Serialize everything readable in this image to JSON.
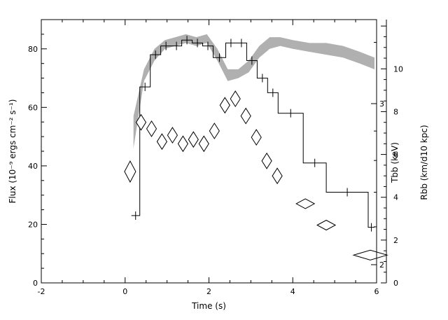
{
  "chart_data": {
    "type": "line",
    "xlabel": "Time (s)",
    "xlim": [
      -2,
      6
    ],
    "xticks": [
      -2,
      0,
      2,
      4,
      6
    ],
    "ylabel_left": "Flux (10⁻⁹ ergs cm⁻² s⁻¹)",
    "ylim_left": [
      0,
      90
    ],
    "yticks_left": [
      0,
      20,
      40,
      60,
      80
    ],
    "ylabel_right_T": "Tbb (keV)",
    "yticks_right_T": [
      2,
      3
    ],
    "ylabel_right_R": "Rbb (km/d10 kpc)",
    "ylim_right_R": [
      0,
      12.3
    ],
    "yticks_right_R": [
      0,
      2,
      4,
      6,
      8,
      10
    ],
    "series": [
      {
        "kind": "step",
        "color": "#000000",
        "points": [
          {
            "x": 0.15,
            "y": 23
          },
          {
            "x": 0.35,
            "y": 67
          },
          {
            "x": 0.6,
            "y": 78
          },
          {
            "x": 0.85,
            "y": 81
          },
          {
            "x": 1.1,
            "y": 81
          },
          {
            "x": 1.35,
            "y": 83
          },
          {
            "x": 1.6,
            "y": 82
          },
          {
            "x": 1.85,
            "y": 81
          },
          {
            "x": 2.1,
            "y": 77
          },
          {
            "x": 2.4,
            "y": 82
          },
          {
            "x": 2.65,
            "y": 82
          },
          {
            "x": 2.9,
            "y": 76
          },
          {
            "x": 3.15,
            "y": 70
          },
          {
            "x": 3.4,
            "y": 65
          },
          {
            "x": 3.65,
            "y": 58
          },
          {
            "x": 4.25,
            "y": 41
          },
          {
            "x": 4.8,
            "y": 31
          },
          {
            "x": 5.8,
            "y": 19
          }
        ],
        "last_edge": 5.95
      },
      {
        "kind": "diamonds",
        "color": "#000000",
        "axis": "R",
        "points": [
          {
            "x": 0.12,
            "y": 5.2
          },
          {
            "x": 0.38,
            "y": 7.5
          },
          {
            "x": 0.63,
            "y": 7.2
          },
          {
            "x": 0.88,
            "y": 6.6
          },
          {
            "x": 1.13,
            "y": 6.9
          },
          {
            "x": 1.38,
            "y": 6.5
          },
          {
            "x": 1.63,
            "y": 6.7
          },
          {
            "x": 1.88,
            "y": 6.5
          },
          {
            "x": 2.13,
            "y": 7.1
          },
          {
            "x": 2.38,
            "y": 8.3
          },
          {
            "x": 2.63,
            "y": 8.6
          },
          {
            "x": 2.88,
            "y": 7.8
          },
          {
            "x": 3.13,
            "y": 6.8
          },
          {
            "x": 3.38,
            "y": 5.7
          },
          {
            "x": 3.63,
            "y": 5.0
          },
          {
            "x": 4.3,
            "y": 3.7
          },
          {
            "x": 4.8,
            "y": 2.7
          },
          {
            "x": 5.85,
            "y": 1.3
          }
        ]
      },
      {
        "kind": "band",
        "color": "#b0b0b0",
        "points": [
          {
            "x": 0.2,
            "lo": 46,
            "hi": 57
          },
          {
            "x": 0.45,
            "lo": 69,
            "hi": 73
          },
          {
            "x": 0.7,
            "lo": 76,
            "hi": 80
          },
          {
            "x": 0.95,
            "lo": 80,
            "hi": 83
          },
          {
            "x": 1.2,
            "lo": 81,
            "hi": 84
          },
          {
            "x": 1.45,
            "lo": 82,
            "hi": 85
          },
          {
            "x": 1.7,
            "lo": 81,
            "hi": 84
          },
          {
            "x": 1.95,
            "lo": 82,
            "hi": 85
          },
          {
            "x": 2.2,
            "lo": 76,
            "hi": 80
          },
          {
            "x": 2.45,
            "lo": 69,
            "hi": 73
          },
          {
            "x": 2.7,
            "lo": 70,
            "hi": 73
          },
          {
            "x": 2.95,
            "lo": 72,
            "hi": 76
          },
          {
            "x": 3.2,
            "lo": 77,
            "hi": 81
          },
          {
            "x": 3.45,
            "lo": 80,
            "hi": 84
          },
          {
            "x": 3.7,
            "lo": 81,
            "hi": 84
          },
          {
            "x": 4.0,
            "lo": 80,
            "hi": 83
          },
          {
            "x": 4.4,
            "lo": 79,
            "hi": 82
          },
          {
            "x": 4.8,
            "lo": 78,
            "hi": 82
          },
          {
            "x": 5.2,
            "lo": 77,
            "hi": 81
          },
          {
            "x": 5.6,
            "lo": 75,
            "hi": 79
          },
          {
            "x": 5.95,
            "lo": 73,
            "hi": 77
          }
        ]
      }
    ],
    "grid": false
  }
}
